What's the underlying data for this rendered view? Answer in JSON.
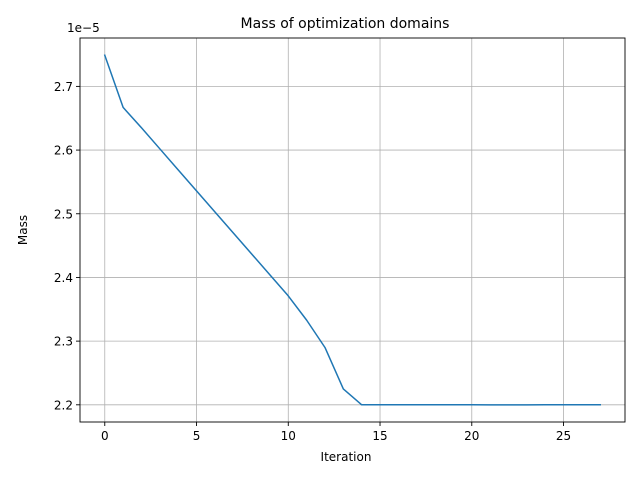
{
  "chart_data": {
    "type": "line",
    "title": "Mass of optimization domains",
    "xlabel": "Iteration",
    "ylabel": "Mass",
    "y_offset_label": "1e−5",
    "xlim": [
      -1.35,
      28.35
    ],
    "ylim": [
      2.173,
      2.776
    ],
    "xticks": [
      0,
      5,
      10,
      15,
      20,
      25
    ],
    "xtick_labels": [
      "0",
      "5",
      "10",
      "15",
      "20",
      "25"
    ],
    "yticks": [
      2.2,
      2.3,
      2.4,
      2.5,
      2.6,
      2.7
    ],
    "ytick_labels": [
      "2.2",
      "2.3",
      "2.4",
      "2.5",
      "2.6",
      "2.7"
    ],
    "grid": true,
    "line_color": "#1f77b4",
    "series": [
      {
        "x": [
          0,
          1,
          2,
          3,
          4,
          5,
          6,
          7,
          8,
          9,
          10,
          11,
          12,
          13,
          14,
          15,
          16,
          17,
          18,
          19,
          20,
          21,
          22,
          23,
          24,
          25,
          26,
          27
        ],
        "values": [
          2.749,
          2.667,
          2.635,
          2.602,
          2.569,
          2.536,
          2.503,
          2.47,
          2.437,
          2.404,
          2.371,
          2.333,
          2.29,
          2.225,
          2.2,
          2.2,
          2.2,
          2.2,
          2.2,
          2.2,
          2.2,
          2.1998,
          2.1998,
          2.1998,
          2.2,
          2.2,
          2.2,
          2.2
        ]
      }
    ]
  }
}
